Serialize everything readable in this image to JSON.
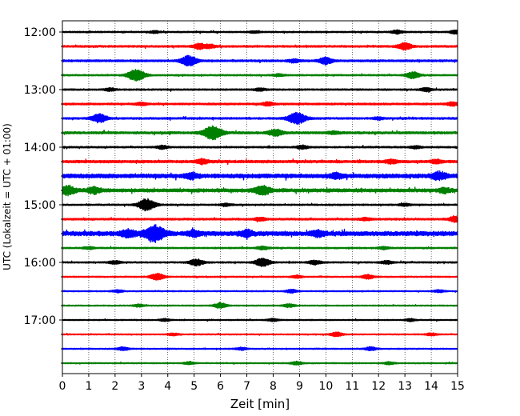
{
  "chart_data": {
    "type": "line",
    "title": "",
    "xlabel": "Zeit  [min]",
    "ylabel": "UTC (Lokalzeit = UTC + 01:00)",
    "xlim": [
      0,
      15
    ],
    "x_ticks": [
      "0",
      "1",
      "2",
      "3",
      "4",
      "5",
      "6",
      "7",
      "8",
      "9",
      "10",
      "11",
      "12",
      "13",
      "14",
      "15"
    ],
    "y_tick_labels": [
      "12:00",
      "13:00",
      "14:00",
      "15:00",
      "16:00",
      "17:00"
    ],
    "grid": "vertical dotted at each minute",
    "line_interval_minutes": 15,
    "start_time_utc": "12:00",
    "colors": [
      "#000000",
      "#ff0000",
      "#0000ff",
      "#008000"
    ],
    "traces": [
      {
        "time": "12:00",
        "color": "#000000",
        "amplitude": 1.0,
        "events": [
          [
            3.5,
            1.3
          ],
          [
            7.3,
            1.2
          ],
          [
            12.7,
            2.0
          ],
          [
            14.9,
            2.0
          ]
        ]
      },
      {
        "time": "12:15",
        "color": "#ff0000",
        "amplitude": 1.3,
        "events": [
          [
            5.2,
            3.0
          ],
          [
            5.6,
            2.0
          ],
          [
            13.0,
            4.0
          ]
        ]
      },
      {
        "time": "12:30",
        "color": "#0000ff",
        "amplitude": 1.4,
        "events": [
          [
            4.8,
            6.0
          ],
          [
            8.8,
            2.0
          ],
          [
            10.0,
            4.0
          ]
        ]
      },
      {
        "time": "12:45",
        "color": "#008000",
        "amplitude": 1.0,
        "events": [
          [
            2.8,
            7.0
          ],
          [
            8.2,
            1.5
          ],
          [
            13.3,
            4.0
          ]
        ]
      },
      {
        "time": "13:00",
        "color": "#000000",
        "amplitude": 1.1,
        "events": [
          [
            1.8,
            1.5
          ],
          [
            7.5,
            1.5
          ],
          [
            13.8,
            2.0
          ]
        ]
      },
      {
        "time": "13:15",
        "color": "#ff0000",
        "amplitude": 1.3,
        "events": [
          [
            3.0,
            1.5
          ],
          [
            7.8,
            2.0
          ],
          [
            14.8,
            2.0
          ]
        ]
      },
      {
        "time": "13:30",
        "color": "#0000ff",
        "amplitude": 1.3,
        "events": [
          [
            1.4,
            5.0
          ],
          [
            8.9,
            7.0
          ],
          [
            12.0,
            1.5
          ]
        ]
      },
      {
        "time": "13:45",
        "color": "#008000",
        "amplitude": 1.6,
        "events": [
          [
            5.7,
            8.0
          ],
          [
            8.1,
            4.0
          ],
          [
            10.3,
            1.5
          ]
        ]
      },
      {
        "time": "14:00",
        "color": "#000000",
        "amplitude": 1.1,
        "events": [
          [
            3.8,
            2.0
          ],
          [
            9.1,
            2.0
          ],
          [
            13.4,
            1.5
          ]
        ]
      },
      {
        "time": "14:15",
        "color": "#ff0000",
        "amplitude": 1.8,
        "events": [
          [
            5.3,
            2.5
          ],
          [
            12.5,
            2.0
          ],
          [
            14.2,
            2.0
          ]
        ]
      },
      {
        "time": "14:30",
        "color": "#0000ff",
        "amplitude": 2.8,
        "events": [
          [
            4.9,
            3.0
          ],
          [
            10.4,
            3.0
          ],
          [
            14.3,
            4.0
          ]
        ]
      },
      {
        "time": "14:45",
        "color": "#008000",
        "amplitude": 2.3,
        "events": [
          [
            0.2,
            5.0
          ],
          [
            1.2,
            3.5
          ],
          [
            7.6,
            5.0
          ],
          [
            14.5,
            2.5
          ]
        ]
      },
      {
        "time": "15:00",
        "color": "#000000",
        "amplitude": 1.0,
        "events": [
          [
            3.2,
            7.0
          ],
          [
            6.2,
            1.5
          ],
          [
            13.0,
            1.5
          ]
        ]
      },
      {
        "time": "15:15",
        "color": "#ff0000",
        "amplitude": 1.3,
        "events": [
          [
            7.5,
            2.0
          ],
          [
            11.5,
            1.5
          ],
          [
            14.9,
            3.0
          ]
        ]
      },
      {
        "time": "15:30",
        "color": "#0000ff",
        "amplitude": 3.0,
        "events": [
          [
            2.5,
            4.0
          ],
          [
            3.5,
            9.0
          ],
          [
            5.0,
            3.0
          ],
          [
            7.0,
            3.0
          ],
          [
            9.7,
            3.0
          ]
        ]
      },
      {
        "time": "15:45",
        "color": "#008000",
        "amplitude": 1.0,
        "events": [
          [
            1.0,
            1.5
          ],
          [
            7.6,
            2.0
          ],
          [
            12.2,
            1.5
          ]
        ]
      },
      {
        "time": "16:00",
        "color": "#000000",
        "amplitude": 1.0,
        "events": [
          [
            2.0,
            2.0
          ],
          [
            5.1,
            4.0
          ],
          [
            7.6,
            5.0
          ],
          [
            9.6,
            2.5
          ],
          [
            12.3,
            2.0
          ]
        ]
      },
      {
        "time": "16:15",
        "color": "#ff0000",
        "amplitude": 0.9,
        "events": [
          [
            3.6,
            4.0
          ],
          [
            8.9,
            1.5
          ],
          [
            11.6,
            2.5
          ]
        ]
      },
      {
        "time": "16:30",
        "color": "#0000ff",
        "amplitude": 0.8,
        "events": [
          [
            2.1,
            1.5
          ],
          [
            8.7,
            2.0
          ],
          [
            14.3,
            1.5
          ]
        ]
      },
      {
        "time": "16:45",
        "color": "#008000",
        "amplitude": 0.8,
        "events": [
          [
            2.9,
            1.5
          ],
          [
            6.0,
            3.0
          ],
          [
            8.6,
            2.0
          ]
        ]
      },
      {
        "time": "17:00",
        "color": "#000000",
        "amplitude": 0.8,
        "events": [
          [
            3.9,
            1.5
          ],
          [
            8.0,
            1.5
          ],
          [
            13.2,
            1.5
          ]
        ]
      },
      {
        "time": "17:15",
        "color": "#ff0000",
        "amplitude": 0.8,
        "events": [
          [
            4.2,
            1.5
          ],
          [
            10.4,
            2.5
          ],
          [
            14.0,
            1.5
          ]
        ]
      },
      {
        "time": "17:30",
        "color": "#0000ff",
        "amplitude": 0.8,
        "events": [
          [
            2.3,
            2.0
          ],
          [
            6.8,
            1.5
          ],
          [
            11.7,
            2.0
          ]
        ]
      },
      {
        "time": "17:45",
        "color": "#008000",
        "amplitude": 0.8,
        "events": [
          [
            4.8,
            1.5
          ],
          [
            8.9,
            2.0
          ],
          [
            12.4,
            1.5
          ]
        ]
      }
    ]
  }
}
